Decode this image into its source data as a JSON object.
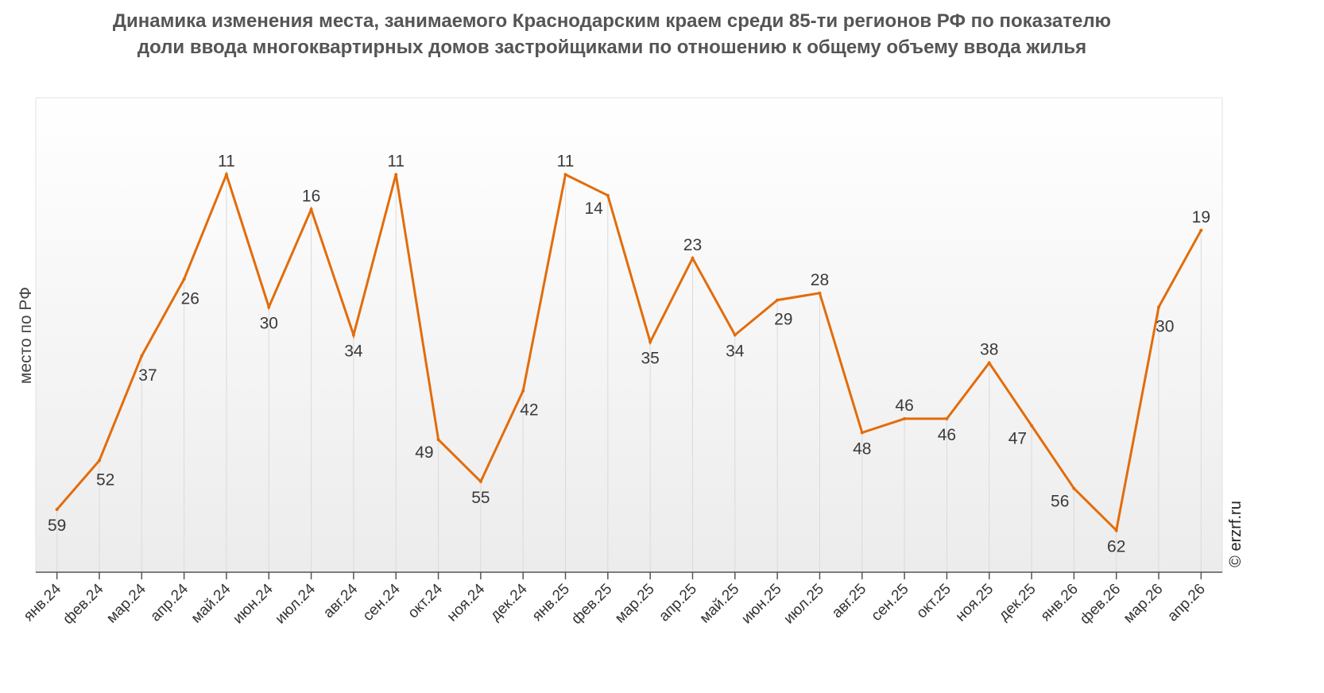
{
  "chart_data": {
    "type": "line",
    "title": "Динамика изменения места, занимаемого Краснодарским краем среди 85-ти регионов РФ по показателю доли ввода многоквартирных домов застройщиками по отношению к общему объему ввода жилья",
    "ylabel": "место по РФ",
    "xlabel": "",
    "y_reversed": true,
    "ylim": [
      0,
      68
    ],
    "grid": "vertical",
    "categories": [
      "янв.24",
      "фев.24",
      "мар.24",
      "апр.24",
      "май.24",
      "июн.24",
      "июл.24",
      "авг.24",
      "сен.24",
      "окт.24",
      "ноя.24",
      "дек.24",
      "янв.25",
      "фев.25",
      "мар.25",
      "апр.25",
      "май.25",
      "июн.25",
      "июл.25",
      "авг.25",
      "сен.25",
      "окт.25",
      "ноя.25",
      "дек.25",
      "янв.26",
      "фев.26",
      "мар.26",
      "апр.26"
    ],
    "series": [
      {
        "values": [
          59,
          52,
          37,
          26,
          11,
          30,
          16,
          34,
          11,
          49,
          55,
          42,
          11,
          14,
          35,
          23,
          34,
          29,
          28,
          48,
          46,
          46,
          38,
          47,
          56,
          62,
          30,
          19
        ],
        "color": "#e36c0a"
      }
    ]
  },
  "credit": "© erzrf.ru"
}
